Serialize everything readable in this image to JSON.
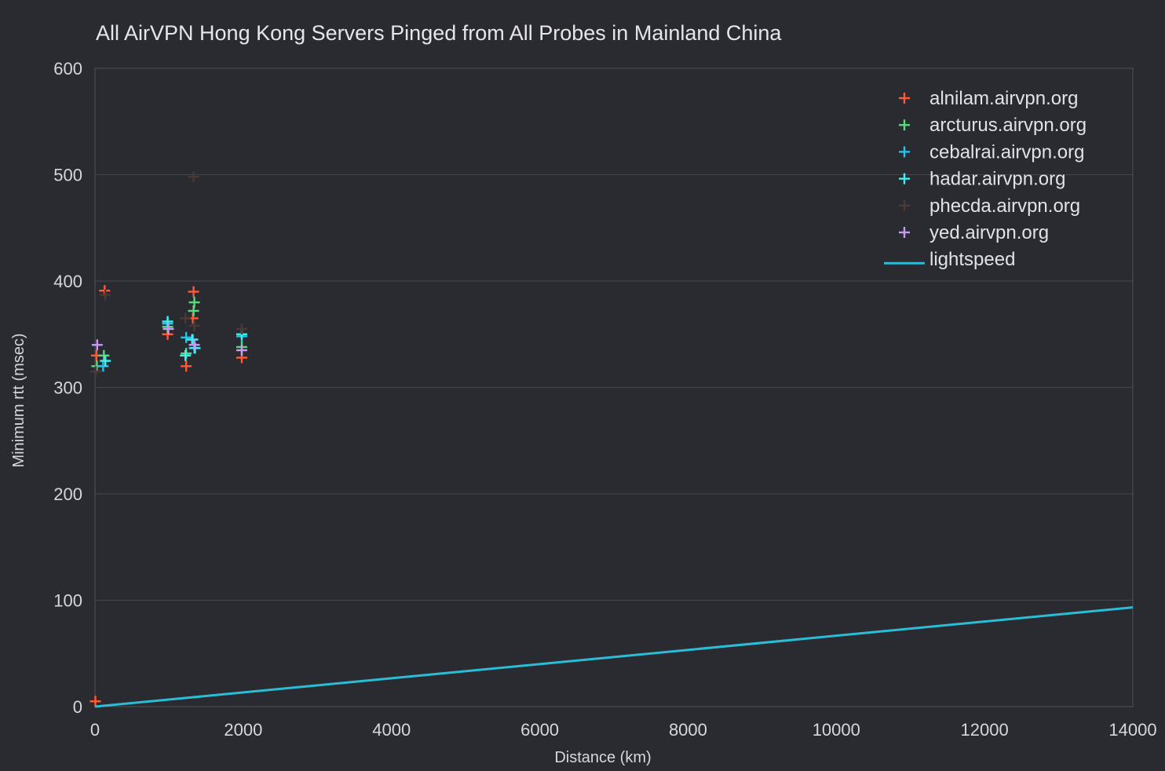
{
  "chart_data": {
    "type": "scatter",
    "title": "All AirVPN Hong Kong Servers Pinged from All Probes in Mainland China",
    "xlabel": "Distance (km)",
    "ylabel": "Minimum rtt (msec)",
    "xlim": [
      0,
      14000
    ],
    "ylim": [
      0,
      600
    ],
    "xticks": [
      "0",
      "2000",
      "4000",
      "6000",
      "8000",
      "10000",
      "12000",
      "14000"
    ],
    "yticks": [
      "0",
      "100",
      "200",
      "300",
      "400",
      "500",
      "600"
    ],
    "grid": true,
    "legend_position": "top-right",
    "series": [
      {
        "name": "alnilam.airvpn.org",
        "marker": "plus",
        "color": "#ff5a36",
        "points": [
          [
            5,
            5
          ],
          [
            20,
            330
          ],
          [
            130,
            391
          ],
          [
            980,
            350
          ],
          [
            1230,
            320
          ],
          [
            1320,
            365
          ],
          [
            1330,
            390
          ],
          [
            1980,
            328
          ]
        ]
      },
      {
        "name": "arcturus.airvpn.org",
        "marker": "plus",
        "color": "#5bd97e",
        "points": [
          [
            25,
            320
          ],
          [
            120,
            330
          ],
          [
            980,
            357
          ],
          [
            1230,
            332
          ],
          [
            1330,
            372
          ],
          [
            1340,
            380
          ],
          [
            1980,
            338
          ]
        ]
      },
      {
        "name": "cebalrai.airvpn.org",
        "marker": "plus",
        "color": "#25c3e8",
        "points": [
          [
            110,
            320
          ],
          [
            980,
            360
          ],
          [
            1230,
            347
          ],
          [
            1320,
            345
          ],
          [
            1340,
            337
          ],
          [
            1980,
            348
          ]
        ]
      },
      {
        "name": "hadar.airvpn.org",
        "marker": "plus",
        "color": "#3ff0f0",
        "points": [
          [
            140,
            325
          ],
          [
            980,
            362
          ],
          [
            1220,
            330
          ],
          [
            1310,
            345
          ],
          [
            1350,
            337
          ],
          [
            1980,
            350
          ]
        ]
      },
      {
        "name": "phecda.airvpn.org",
        "marker": "plus",
        "color": "#4a3a36",
        "points": [
          [
            10,
            315
          ],
          [
            140,
            387
          ],
          [
            1220,
            365
          ],
          [
            1330,
            498
          ],
          [
            1340,
            358
          ],
          [
            1980,
            355
          ]
        ]
      },
      {
        "name": "yed.airvpn.org",
        "marker": "plus",
        "color": "#c89af2",
        "points": [
          [
            30,
            340
          ],
          [
            990,
            355
          ],
          [
            1340,
            340
          ],
          [
            1980,
            335
          ]
        ]
      },
      {
        "name": "lightspeed",
        "marker": "line",
        "color": "#2bbdd6",
        "points": [
          [
            0,
            0
          ],
          [
            14000,
            93.3
          ]
        ]
      }
    ]
  }
}
